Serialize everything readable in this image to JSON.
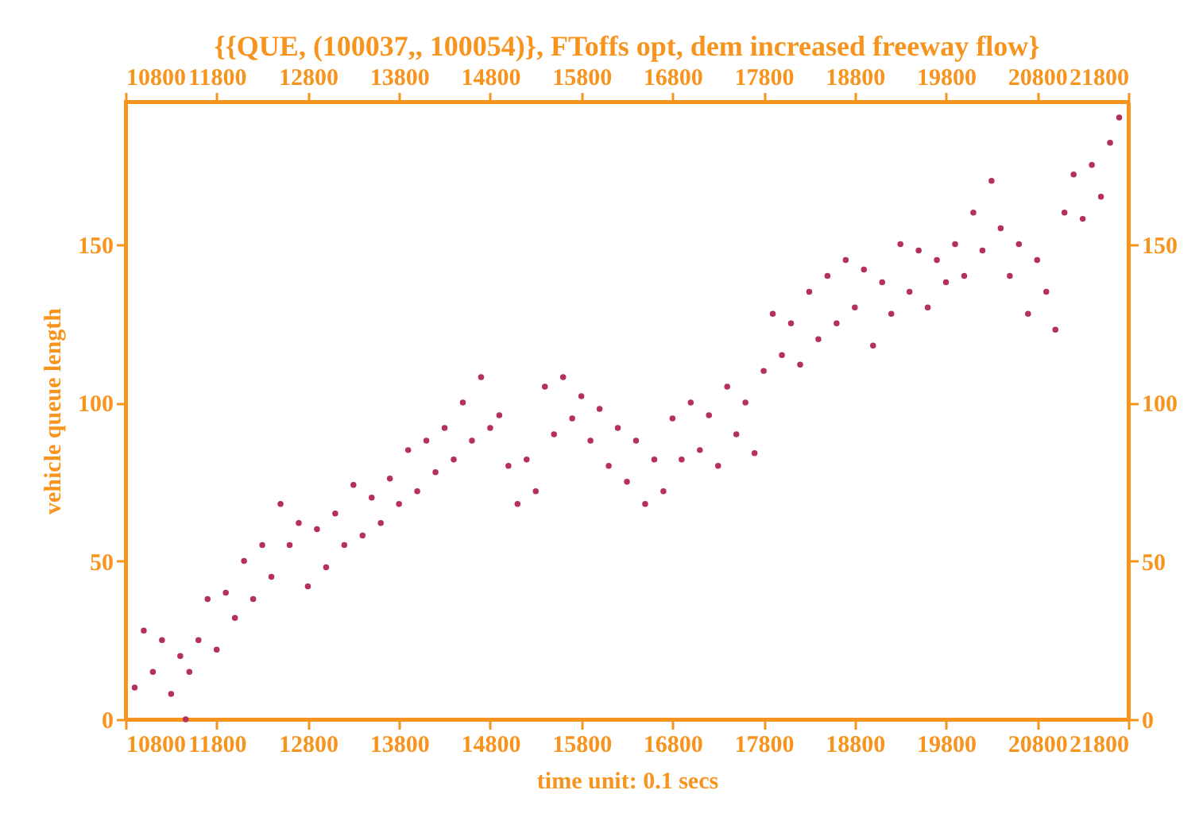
{
  "chart_data": {
    "type": "scatter",
    "title": "{{QUE, (100037,, 100054)}, FToffs opt, dem increased freeway flow}",
    "xlabel": "time unit: 0.1 secs",
    "ylabel": "vehicle queue length",
    "xlim": [
      10800,
      21800
    ],
    "xticks": [
      10800,
      11800,
      12800,
      13800,
      14800,
      15800,
      16800,
      17800,
      18800,
      19800,
      20800,
      21800
    ],
    "x2lim": [
      10800,
      21800
    ],
    "x2ticks": [
      10800,
      11800,
      12800,
      13800,
      14800,
      15800,
      16800,
      17800,
      18800,
      19800,
      20800,
      21800
    ],
    "ylim": [
      0,
      195
    ],
    "yticks": [
      0,
      50,
      100,
      150
    ],
    "y2lim": [
      0,
      195
    ],
    "y2ticks": [
      0,
      50,
      100,
      150
    ],
    "x": [
      10900,
      11000,
      11100,
      11200,
      11300,
      11400,
      11460,
      11500,
      11600,
      11700,
      11800,
      11900,
      12000,
      12100,
      12200,
      12300,
      12400,
      12500,
      12600,
      12700,
      12800,
      12900,
      13000,
      13100,
      13200,
      13300,
      13400,
      13500,
      13600,
      13700,
      13800,
      13900,
      14000,
      14100,
      14200,
      14300,
      14400,
      14500,
      14600,
      14700,
      14800,
      14900,
      15000,
      15100,
      15200,
      15300,
      15400,
      15500,
      15600,
      15700,
      15800,
      15900,
      16000,
      16100,
      16200,
      16300,
      16400,
      16500,
      16600,
      16700,
      16800,
      16900,
      17000,
      17100,
      17200,
      17300,
      17400,
      17500,
      17600,
      17700,
      17800,
      17900,
      18000,
      18100,
      18200,
      18300,
      18400,
      18500,
      18600,
      18700,
      18800,
      18900,
      19000,
      19100,
      19200,
      19300,
      19400,
      19500,
      19600,
      19700,
      19800,
      19900,
      20000,
      20100,
      20200,
      20300,
      20400,
      20500,
      20600,
      20700,
      20800,
      20900,
      21000,
      21100,
      21200,
      21300,
      21400,
      21500,
      21600,
      21700
    ],
    "series": [
      {
        "color": "#b5305a",
        "values": [
          10,
          28,
          15,
          25,
          8,
          20,
          0,
          15,
          25,
          38,
          22,
          40,
          32,
          50,
          38,
          55,
          45,
          68,
          55,
          62,
          42,
          60,
          48,
          65,
          55,
          74,
          58,
          70,
          62,
          76,
          68,
          85,
          72,
          88,
          78,
          92,
          82,
          100,
          88,
          108,
          92,
          96,
          80,
          68,
          82,
          72,
          105,
          90,
          108,
          95,
          102,
          88,
          98,
          80,
          92,
          75,
          88,
          68,
          82,
          72,
          95,
          82,
          100,
          85,
          96,
          80,
          105,
          90,
          100,
          84,
          110,
          128,
          115,
          125,
          112,
          135,
          120,
          140,
          125,
          145,
          130,
          142,
          118,
          138,
          128,
          150,
          135,
          148,
          130,
          145,
          138,
          150,
          140,
          160,
          148,
          170,
          155,
          140,
          150,
          128,
          145,
          135,
          123,
          160,
          172,
          158,
          175,
          165,
          182,
          190
        ]
      }
    ]
  }
}
